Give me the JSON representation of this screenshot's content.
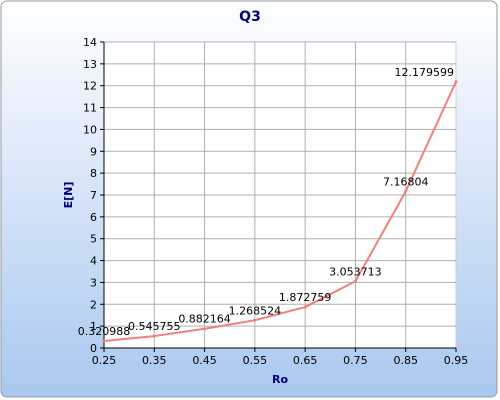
{
  "chart_data": {
    "type": "line",
    "title": "Q3",
    "xlabel": "Ro",
    "ylabel": "E[N]",
    "x": [
      0.25,
      0.35,
      0.45,
      0.55,
      0.65,
      0.75,
      0.85,
      0.95
    ],
    "series": [
      {
        "values": [
          0.320988,
          0.545755,
          0.882164,
          1.268524,
          1.872759,
          3.053713,
          7.16804,
          12.179599
        ],
        "labels": [
          "0.320988",
          "0.545755",
          "0.882164",
          "1.268524",
          "1.872759",
          "3.053713",
          "7.16804",
          "12.179599"
        ],
        "color": "#f08080"
      }
    ],
    "xlim": [
      0.25,
      0.95
    ],
    "ylim": [
      0,
      14
    ],
    "xticks": [
      "0.25",
      "0.35",
      "0.45",
      "0.55",
      "0.65",
      "0.75",
      "0.85",
      "0.95"
    ],
    "yticks": [
      "0",
      "1",
      "2",
      "3",
      "4",
      "5",
      "6",
      "7",
      "8",
      "9",
      "10",
      "11",
      "12",
      "13",
      "14"
    ],
    "grid": true,
    "legend": "none",
    "colors": {
      "background_top": "#ffffff",
      "background_bottom": "#a9c8f0",
      "plot_background": "#ffffff",
      "grid": "#b0b0b0",
      "title": "#000080",
      "line": "#f08080"
    }
  }
}
